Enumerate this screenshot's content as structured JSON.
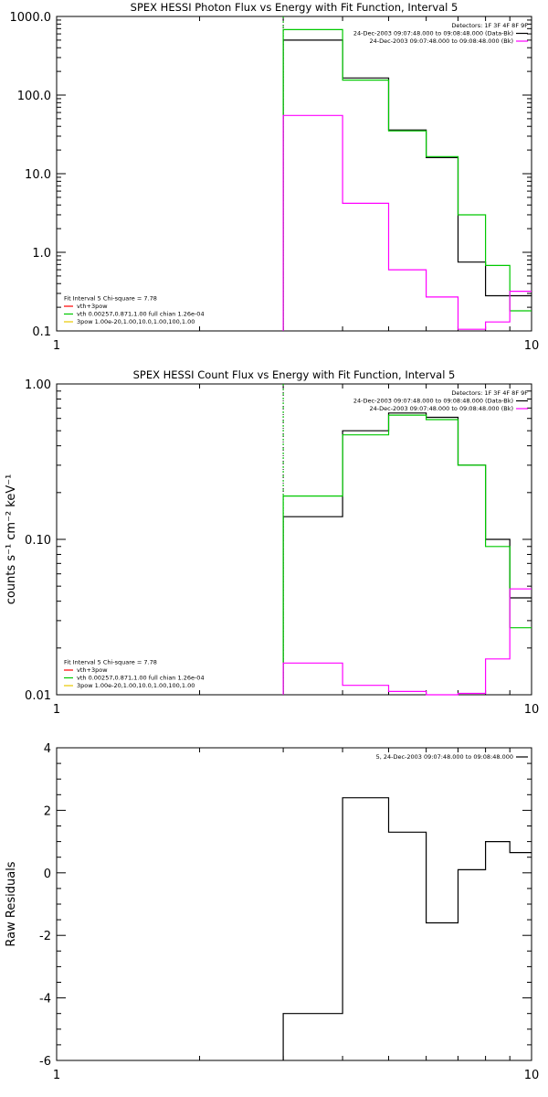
{
  "chart_data": [
    {
      "type": "line",
      "title": "SPEX HESSI Photon Flux vs Energy with Fit Function, Interval 5",
      "xlabel": "",
      "ylabel": "",
      "x_scale": "log",
      "y_scale": "log",
      "xlim": [
        1,
        10
      ],
      "ylim": [
        0.1,
        1000
      ],
      "x_ticks": [
        "1",
        "10"
      ],
      "y_ticks": [
        "0.1",
        "1.0",
        "10.0",
        "100.0",
        "1000.0"
      ],
      "legend_top": [
        {
          "label": "Detectors: 1F 3F 4F 8F 9F",
          "color": ""
        },
        {
          "label": "24-Dec-2003 09:07:48.000 to 09:08:48.000 (Data-Bk)",
          "color": "#000000"
        },
        {
          "label": "24-Dec-2003 09:07:48.000 to 09:08:48.000 (Bk)",
          "color": "#ff00ff"
        }
      ],
      "legend_bottom": [
        {
          "label": "Fit Interval 5   Chi-square = 7.78",
          "color": ""
        },
        {
          "label": "vth+3pow",
          "color": "#ff0000"
        },
        {
          "label": "vth 0.00257,0.871,1.00  full chian 1.26e-04",
          "color": "#00c800"
        },
        {
          "label": "3pow 1.00e-20,1.00,10.0,1.00,100,1.00",
          "color": "#e8c800"
        }
      ],
      "marker_x": 3.0,
      "edges": [
        3.0,
        4.0,
        5.0,
        6.0,
        7.0,
        8.0,
        9.0,
        10.0
      ],
      "series": [
        {
          "name": "24-Dec-2003 09:07:48.000 to 09:08:48.000 (Data-Bk)",
          "color": "#000000",
          "values": [
            500,
            165,
            36,
            16,
            0.75,
            0.28,
            0.28
          ]
        },
        {
          "name": "vth+3pow",
          "color": "#00c800",
          "values": [
            680,
            155,
            35,
            16.5,
            3.0,
            0.68,
            0.18
          ]
        },
        {
          "name": "24-Dec-2003 09:07:48.000 to 09:08:48.000 (Bk)",
          "color": "#ff00ff",
          "values": [
            55,
            4.2,
            0.6,
            0.27,
            0.105,
            0.13,
            0.32
          ]
        }
      ]
    },
    {
      "type": "line",
      "title": "SPEX HESSI Count Flux vs Energy with Fit Function, Interval 5",
      "xlabel": "",
      "ylabel": "counts s⁻¹ cm⁻² keV⁻¹",
      "x_scale": "log",
      "y_scale": "log",
      "xlim": [
        1,
        10
      ],
      "ylim": [
        0.01,
        1.0
      ],
      "x_ticks": [
        "1",
        "10"
      ],
      "y_ticks": [
        "0.01",
        "0.10",
        "1.00"
      ],
      "legend_top": [
        {
          "label": "Detectors: 1F 3F 4F 8F 9F",
          "color": ""
        },
        {
          "label": "24-Dec-2003 09:07:48.000 to 09:08:48.000 (Data-Bk)",
          "color": "#000000"
        },
        {
          "label": "24-Dec-2003 09:07:48.000 to 09:08:48.000 (Bk)",
          "color": "#ff00ff"
        }
      ],
      "legend_bottom": [
        {
          "label": "Fit Interval 5   Chi-square = 7.78",
          "color": ""
        },
        {
          "label": "vth+3pow",
          "color": "#ff0000"
        },
        {
          "label": "vth 0.00257,0.871,1.00  full chian 1.26e-04",
          "color": "#00c800"
        },
        {
          "label": "3pow 1.00e-20,1.00,10.0,1.00,100,1.00",
          "color": "#e8c800"
        }
      ],
      "marker_x": 3.0,
      "edges": [
        3.0,
        4.0,
        5.0,
        6.0,
        7.0,
        8.0,
        9.0,
        10.0
      ],
      "series": [
        {
          "name": "24-Dec-2003 09:07:48.000 to 09:08:48.000 (Data-Bk)",
          "color": "#000000",
          "values": [
            0.14,
            0.5,
            0.65,
            0.61,
            0.3,
            0.1,
            0.042
          ]
        },
        {
          "name": "vth+3pow",
          "color": "#00c800",
          "values": [
            0.19,
            0.47,
            0.63,
            0.59,
            0.3,
            0.09,
            0.027
          ]
        },
        {
          "name": "24-Dec-2003 09:07:48.000 to 09:08:48.000 (Bk)",
          "color": "#ff00ff",
          "values": [
            0.016,
            0.0115,
            0.0105,
            0.01,
            0.0102,
            0.017,
            0.048
          ]
        }
      ]
    },
    {
      "type": "line",
      "title": "",
      "xlabel": "",
      "ylabel": "Raw Residuals",
      "x_scale": "log",
      "y_scale": "linear",
      "xlim": [
        1,
        10
      ],
      "ylim": [
        -6,
        4
      ],
      "x_ticks": [
        "1",
        "10"
      ],
      "y_ticks": [
        "-6",
        "-4",
        "-2",
        "0",
        "2",
        "4"
      ],
      "legend_top": [
        {
          "label": "5, 24-Dec-2003 09:07:48.000 to 09:08:48.000",
          "color": "#000000"
        }
      ],
      "legend_bottom": [],
      "edges": [
        3.0,
        4.0,
        5.0,
        6.0,
        7.0,
        8.0,
        9.0,
        10.0
      ],
      "series": [
        {
          "name": "5, 24-Dec-2003 09:07:48.000 to 09:08:48.000",
          "color": "#000000",
          "values": [
            -4.5,
            2.4,
            1.3,
            -1.6,
            0.1,
            1.0,
            0.65
          ]
        }
      ]
    }
  ]
}
